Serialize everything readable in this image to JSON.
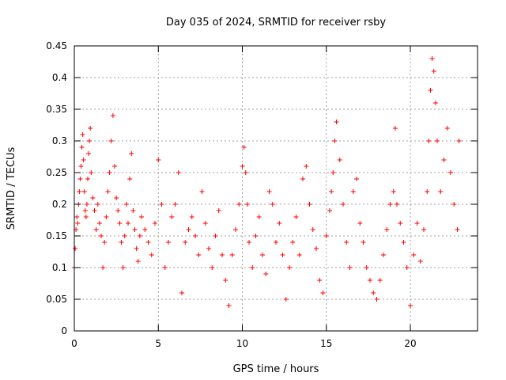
{
  "chart_data": {
    "type": "scatter",
    "title": "Day 035 of 2024, SRMTID for receiver rsby",
    "xlabel": "GPS time / hours",
    "ylabel": "SRMTID / TECUs",
    "xlim": [
      0,
      24
    ],
    "ylim": [
      0,
      0.45
    ],
    "xticks": [
      0,
      5,
      10,
      15,
      20
    ],
    "xtick_labels": [
      "0",
      "5",
      "10",
      "15",
      "20"
    ],
    "yticks": [
      0,
      0.05,
      0.1,
      0.15,
      0.2,
      0.25,
      0.3,
      0.35,
      0.4,
      0.45
    ],
    "ytick_labels": [
      "0",
      "0.05",
      "0.1",
      "0.15",
      "0.2",
      "0.25",
      "0.3",
      "0.35",
      "0.4",
      "0.45"
    ],
    "grid": true,
    "marker": "+",
    "color": "#ff0000",
    "series": [
      {
        "x": [
          0.0,
          0.05,
          0.1,
          0.15,
          0.2,
          0.25,
          0.3,
          0.35,
          0.4,
          0.45,
          0.5,
          0.55,
          0.6,
          0.65,
          0.7,
          0.75,
          0.8,
          0.85,
          0.9,
          0.95,
          1.0,
          1.1,
          1.2,
          1.3,
          1.4,
          1.5,
          1.6,
          1.7,
          1.8,
          1.9,
          2.0,
          2.1,
          2.2,
          2.3,
          2.4,
          2.5,
          2.6,
          2.7,
          2.8,
          2.9,
          3.0,
          3.1,
          3.2,
          3.3,
          3.4,
          3.5,
          3.6,
          3.7,
          3.8,
          3.9,
          4.0,
          4.2,
          4.4,
          4.6,
          4.8,
          5.0,
          5.2,
          5.4,
          5.6,
          5.8,
          6.0,
          6.2,
          6.4,
          6.6,
          6.8,
          7.0,
          7.2,
          7.4,
          7.6,
          7.8,
          8.0,
          8.2,
          8.4,
          8.6,
          8.8,
          9.0,
          9.2,
          9.4,
          9.6,
          9.8,
          10.0,
          10.1,
          10.2,
          10.3,
          10.4,
          10.6,
          10.8,
          11.0,
          11.2,
          11.4,
          11.6,
          11.8,
          12.0,
          12.2,
          12.4,
          12.6,
          12.8,
          13.0,
          13.2,
          13.4,
          13.6,
          13.8,
          14.0,
          14.2,
          14.4,
          14.6,
          14.8,
          15.0,
          15.2,
          15.3,
          15.4,
          15.5,
          15.6,
          15.8,
          16.0,
          16.2,
          16.4,
          16.6,
          16.8,
          17.0,
          17.2,
          17.4,
          17.6,
          17.8,
          18.0,
          18.2,
          18.4,
          18.6,
          18.8,
          19.0,
          19.1,
          19.2,
          19.4,
          19.6,
          19.8,
          20.0,
          20.2,
          20.4,
          20.6,
          20.8,
          21.0,
          21.1,
          21.2,
          21.3,
          21.4,
          21.5,
          21.6,
          21.8,
          22.0,
          22.2,
          22.4,
          22.6,
          22.8,
          22.9
        ],
        "y": [
          0.1,
          0.13,
          0.16,
          0.18,
          0.17,
          0.2,
          0.22,
          0.24,
          0.26,
          0.29,
          0.31,
          0.27,
          0.22,
          0.19,
          0.18,
          0.2,
          0.24,
          0.28,
          0.3,
          0.32,
          0.25,
          0.21,
          0.19,
          0.16,
          0.2,
          0.17,
          0.15,
          0.1,
          0.14,
          0.18,
          0.22,
          0.25,
          0.3,
          0.34,
          0.26,
          0.21,
          0.19,
          0.17,
          0.14,
          0.1,
          0.15,
          0.2,
          0.17,
          0.24,
          0.28,
          0.19,
          0.16,
          0.13,
          0.11,
          0.15,
          0.18,
          0.16,
          0.14,
          0.12,
          0.17,
          0.27,
          0.2,
          0.1,
          0.14,
          0.18,
          0.2,
          0.25,
          0.06,
          0.14,
          0.16,
          0.18,
          0.15,
          0.12,
          0.22,
          0.17,
          0.13,
          0.1,
          0.15,
          0.19,
          0.12,
          0.08,
          0.04,
          0.12,
          0.16,
          0.2,
          0.26,
          0.29,
          0.25,
          0.2,
          0.14,
          0.1,
          0.15,
          0.18,
          0.12,
          0.09,
          0.22,
          0.2,
          0.14,
          0.17,
          0.12,
          0.05,
          0.1,
          0.14,
          0.18,
          0.12,
          0.24,
          0.26,
          0.2,
          0.16,
          0.13,
          0.08,
          0.06,
          0.15,
          0.19,
          0.22,
          0.25,
          0.3,
          0.33,
          0.27,
          0.2,
          0.14,
          0.1,
          0.22,
          0.24,
          0.17,
          0.14,
          0.1,
          0.08,
          0.06,
          0.05,
          0.08,
          0.12,
          0.16,
          0.2,
          0.22,
          0.32,
          0.2,
          0.17,
          0.14,
          0.1,
          0.04,
          0.12,
          0.17,
          0.11,
          0.16,
          0.22,
          0.3,
          0.38,
          0.43,
          0.41,
          0.36,
          0.3,
          0.22,
          0.27,
          0.32,
          0.25,
          0.2,
          0.16,
          0.3
        ]
      }
    ]
  }
}
